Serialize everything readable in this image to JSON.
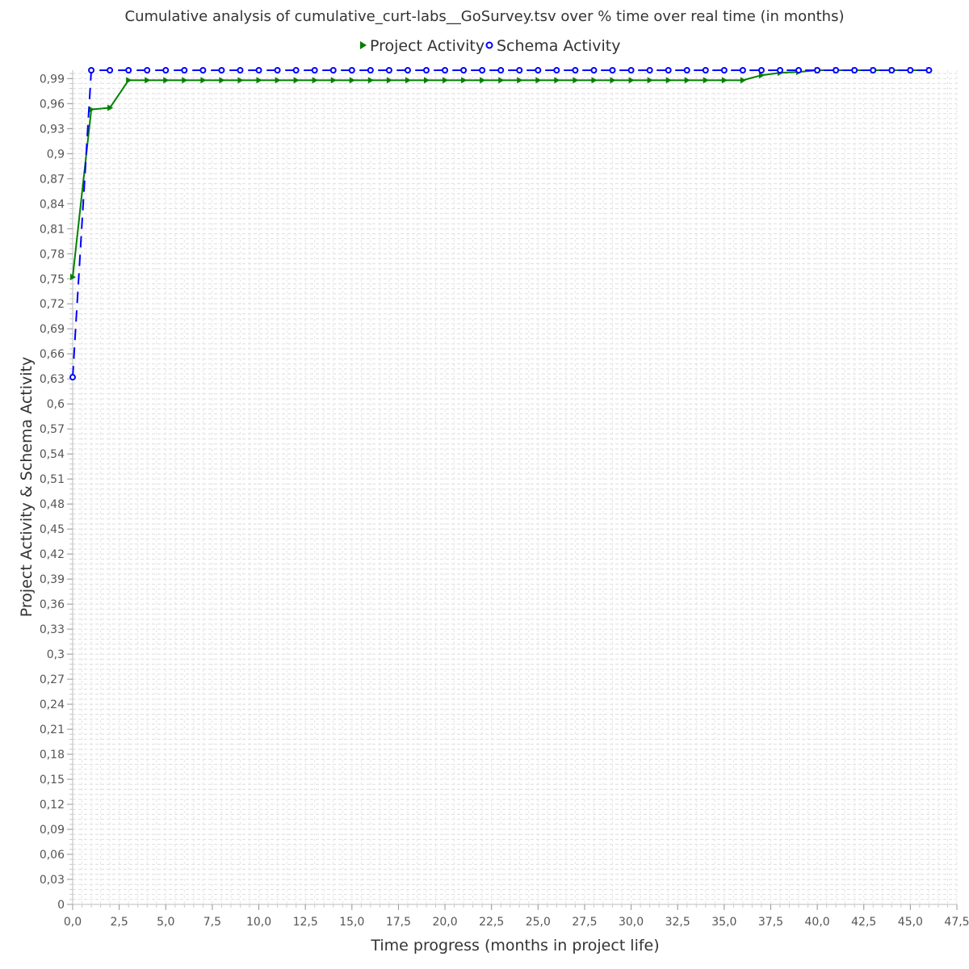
{
  "chart_data": {
    "type": "line",
    "title": "Cumulative analysis of cumulative_curt-labs__GoSurvey.tsv over % time over real time (in months)",
    "xlabel": "Time progress (months in project life)",
    "ylabel": "Project Activity & Schema Activity",
    "xlim": [
      0,
      47.5
    ],
    "ylim": [
      0,
      1.0
    ],
    "x_ticks": [
      "0,0",
      "2,5",
      "5,0",
      "7,5",
      "10,0",
      "12,5",
      "15,0",
      "17,5",
      "20,0",
      "22,5",
      "25,0",
      "27,5",
      "30,0",
      "32,5",
      "35,0",
      "37,5",
      "40,0",
      "42,5",
      "45,0",
      "47,5"
    ],
    "y_ticks": [
      "0",
      "0,03",
      "0,06",
      "0,09",
      "0,12",
      "0,15",
      "0,18",
      "0,21",
      "0,24",
      "0,27",
      "0,3",
      "0,33",
      "0,36",
      "0,39",
      "0,42",
      "0,45",
      "0,48",
      "0,51",
      "0,54",
      "0,57",
      "0,6",
      "0,63",
      "0,66",
      "0,69",
      "0,72",
      "0,75",
      "0,78",
      "0,81",
      "0,84",
      "0,87",
      "0,9",
      "0,93",
      "0,96",
      "0,99"
    ],
    "grid": true,
    "legend_position": "top",
    "series": [
      {
        "name": "Project Activity",
        "color": "#008000",
        "marker": "triangle-right",
        "line_style": "solid",
        "x": [
          0,
          1,
          2,
          3,
          4,
          5,
          6,
          7,
          8,
          9,
          10,
          11,
          12,
          13,
          14,
          15,
          16,
          17,
          18,
          19,
          20,
          21,
          22,
          23,
          24,
          25,
          26,
          27,
          28,
          29,
          30,
          31,
          32,
          33,
          34,
          35,
          36,
          37,
          38,
          39,
          40,
          41,
          42,
          43,
          44,
          45,
          46
        ],
        "y": [
          0.752,
          0.953,
          0.955,
          0.988,
          0.988,
          0.988,
          0.988,
          0.988,
          0.988,
          0.988,
          0.988,
          0.988,
          0.988,
          0.988,
          0.988,
          0.988,
          0.988,
          0.988,
          0.988,
          0.988,
          0.988,
          0.988,
          0.988,
          0.988,
          0.988,
          0.988,
          0.988,
          0.988,
          0.988,
          0.988,
          0.988,
          0.988,
          0.988,
          0.988,
          0.988,
          0.988,
          0.988,
          0.994,
          0.997,
          0.998,
          1.0,
          1.0,
          1.0,
          1.0,
          1.0,
          1.0,
          1.0
        ]
      },
      {
        "name": "Schema Activity",
        "color": "#0000ff",
        "marker": "circle",
        "line_style": "dashed",
        "x": [
          0,
          1,
          2,
          3,
          4,
          5,
          6,
          7,
          8,
          9,
          10,
          11,
          12,
          13,
          14,
          15,
          16,
          17,
          18,
          19,
          20,
          21,
          22,
          23,
          24,
          25,
          26,
          27,
          28,
          29,
          30,
          31,
          32,
          33,
          34,
          35,
          36,
          37,
          38,
          39,
          40,
          41,
          42,
          43,
          44,
          45,
          46
        ],
        "y": [
          0.632,
          1.0,
          1.0,
          1.0,
          1.0,
          1.0,
          1.0,
          1.0,
          1.0,
          1.0,
          1.0,
          1.0,
          1.0,
          1.0,
          1.0,
          1.0,
          1.0,
          1.0,
          1.0,
          1.0,
          1.0,
          1.0,
          1.0,
          1.0,
          1.0,
          1.0,
          1.0,
          1.0,
          1.0,
          1.0,
          1.0,
          1.0,
          1.0,
          1.0,
          1.0,
          1.0,
          1.0,
          1.0,
          1.0,
          1.0,
          1.0,
          1.0,
          1.0,
          1.0,
          1.0,
          1.0,
          1.0
        ]
      }
    ]
  }
}
